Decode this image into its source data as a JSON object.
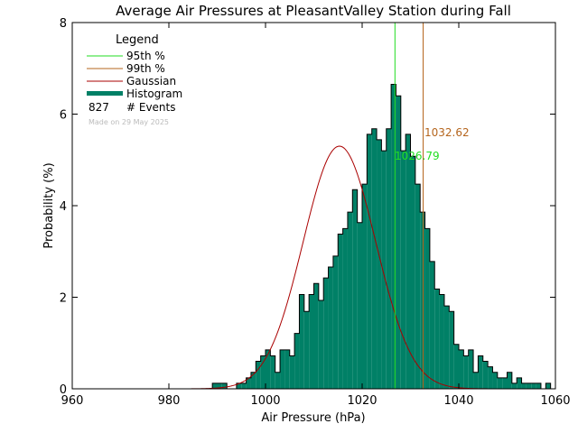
{
  "chart_data": {
    "type": "bar",
    "title": "Average Air Pressures at PleasantValley Station during Fall",
    "xlabel": "Air Pressure (hPa)",
    "ylabel": "Probability (%)",
    "xlim": [
      960,
      1060
    ],
    "ylim": [
      0,
      8
    ],
    "x_ticks": [
      "960",
      "980",
      "1000",
      "1020",
      "1040",
      "1060"
    ],
    "y_ticks": [
      "0",
      "2",
      "4",
      "6",
      "8"
    ],
    "bin_width": 1,
    "bins_start": 989,
    "values": [
      0.12,
      0.12,
      0.12,
      0.0,
      0.0,
      0.12,
      0.12,
      0.24,
      0.36,
      0.6,
      0.72,
      0.85,
      0.72,
      0.36,
      0.85,
      0.85,
      0.72,
      1.21,
      2.06,
      1.69,
      2.06,
      2.3,
      1.93,
      2.42,
      2.66,
      2.9,
      3.38,
      3.5,
      3.86,
      4.35,
      3.63,
      4.47,
      5.56,
      5.68,
      5.44,
      5.2,
      5.68,
      6.65,
      6.4,
      5.2,
      5.56,
      5.08,
      4.47,
      3.86,
      3.5,
      2.78,
      2.18,
      2.06,
      1.81,
      1.69,
      0.97,
      0.85,
      0.72,
      0.85,
      0.36,
      0.72,
      0.6,
      0.48,
      0.36,
      0.24,
      0.24,
      0.36,
      0.12,
      0.24,
      0.12,
      0.12,
      0.12,
      0.12,
      0.0,
      0.12
    ],
    "gaussian": {
      "mean": 1015.3,
      "sigma": 7.5,
      "peak": 5.3
    },
    "p95": {
      "value": 1026.79,
      "label": "1026.79",
      "color": "#22dd22"
    },
    "p99": {
      "value": 1032.62,
      "label": "1032.62",
      "color": "#b5651d"
    },
    "histogram_color": "#008066",
    "gaussian_color": "#aa0000",
    "legend": {
      "title": "Legend",
      "items": [
        {
          "label": "95th %",
          "color": "#22dd22",
          "kind": "line"
        },
        {
          "label": "99th %",
          "color": "#b5651d",
          "kind": "line"
        },
        {
          "label": "Gaussian",
          "color": "#aa0000",
          "kind": "line"
        },
        {
          "label": "Histogram",
          "color": "#008066",
          "kind": "thick"
        }
      ],
      "events_count": "827",
      "events_label": "# Events",
      "made_on": "Made on 29 May 2025"
    }
  }
}
